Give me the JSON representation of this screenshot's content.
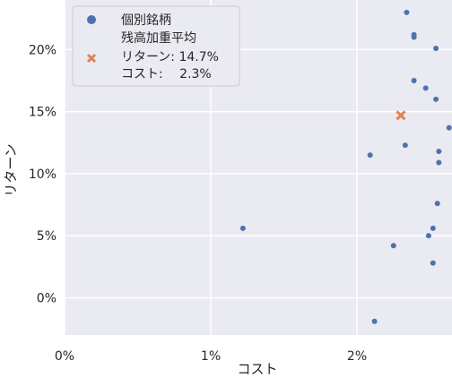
{
  "chart_data": {
    "type": "scatter",
    "xlabel": "コスト",
    "ylabel": "リターン",
    "xlim": [
      0,
      2.65
    ],
    "ylim": [
      -3,
      24
    ],
    "x_ticks": [
      0,
      1,
      2
    ],
    "x_tick_labels": [
      "0%",
      "1%",
      "2%"
    ],
    "y_ticks": [
      0,
      5,
      10,
      15,
      20
    ],
    "y_tick_labels": [
      "0%",
      "5%",
      "10%",
      "15%",
      "20%"
    ],
    "grid": true,
    "legend_position": "top-left",
    "series": [
      {
        "name": "個別銘柄",
        "marker": "circle",
        "color": "#4c72b0",
        "points": [
          {
            "x": 2.34,
            "y": 23.0
          },
          {
            "x": 2.39,
            "y": 21.2
          },
          {
            "x": 2.39,
            "y": 21.0
          },
          {
            "x": 2.54,
            "y": 20.1
          },
          {
            "x": 2.39,
            "y": 17.5
          },
          {
            "x": 2.47,
            "y": 16.9
          },
          {
            "x": 2.54,
            "y": 16.0
          },
          {
            "x": 2.63,
            "y": 13.7
          },
          {
            "x": 2.33,
            "y": 12.3
          },
          {
            "x": 2.56,
            "y": 11.8
          },
          {
            "x": 2.09,
            "y": 11.5
          },
          {
            "x": 2.56,
            "y": 10.9
          },
          {
            "x": 2.55,
            "y": 7.6
          },
          {
            "x": 1.22,
            "y": 5.6
          },
          {
            "x": 2.52,
            "y": 5.6
          },
          {
            "x": 2.49,
            "y": 5.0
          },
          {
            "x": 2.25,
            "y": 4.2
          },
          {
            "x": 2.52,
            "y": 2.8
          },
          {
            "x": 2.12,
            "y": -1.9
          }
        ]
      },
      {
        "name": "残高加重平均",
        "marker": "x",
        "color": "#dd8452",
        "points": [
          {
            "x": 2.3,
            "y": 14.7
          }
        ]
      }
    ],
    "legend": {
      "entries": [
        {
          "lines": [
            "個別銘柄"
          ]
        },
        {
          "lines": [
            "残高加重平均",
            "リターン: 14.7%",
            "コスト:　 2.3%"
          ]
        }
      ]
    }
  }
}
